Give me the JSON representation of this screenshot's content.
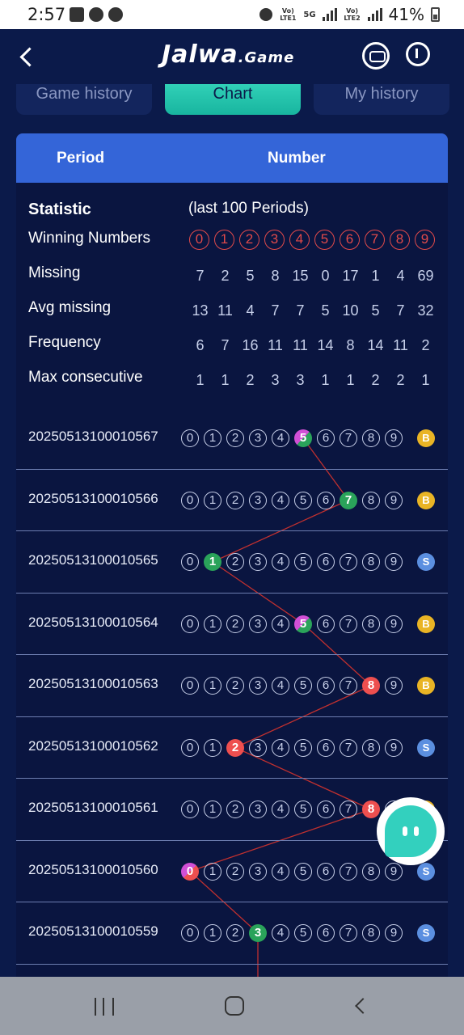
{
  "status_bar": {
    "time": "2:57",
    "battery": "41%",
    "net1": "Vo) LTE1",
    "net2": "Vo) LTE2",
    "net5g": "5G"
  },
  "header": {
    "logo": "Jalwa",
    "logo_suffix": ".Game"
  },
  "tabs": [
    {
      "label": "Game history",
      "active": false
    },
    {
      "label": "Chart",
      "active": true
    },
    {
      "label": "My history",
      "active": false
    }
  ],
  "table_header": {
    "period": "Period",
    "number": "Number"
  },
  "statistic": {
    "title": "Statistic",
    "note": "(last 100 Periods)",
    "rows": [
      {
        "label": "Winning Numbers",
        "values": [
          "0",
          "1",
          "2",
          "3",
          "4",
          "5",
          "6",
          "7",
          "8",
          "9"
        ]
      },
      {
        "label": "Missing",
        "values": [
          "7",
          "2",
          "5",
          "8",
          "15",
          "0",
          "17",
          "1",
          "4",
          "69"
        ]
      },
      {
        "label": "Avg missing",
        "values": [
          "13",
          "11",
          "4",
          "7",
          "7",
          "5",
          "10",
          "5",
          "7",
          "32"
        ]
      },
      {
        "label": "Frequency",
        "values": [
          "6",
          "7",
          "16",
          "11",
          "11",
          "14",
          "8",
          "14",
          "11",
          "2"
        ]
      },
      {
        "label": "Max consecutive",
        "values": [
          "1",
          "1",
          "2",
          "3",
          "3",
          "1",
          "1",
          "2",
          "2",
          "1"
        ]
      }
    ]
  },
  "records": [
    {
      "period": "20250513100010567",
      "number": 5,
      "size": "B"
    },
    {
      "period": "20250513100010566",
      "number": 7,
      "size": "B"
    },
    {
      "period": "20250513100010565",
      "number": 1,
      "size": "S"
    },
    {
      "period": "20250513100010564",
      "number": 5,
      "size": "B"
    },
    {
      "period": "20250513100010563",
      "number": 8,
      "size": "B"
    },
    {
      "period": "20250513100010562",
      "number": 2,
      "size": "S"
    },
    {
      "period": "20250513100010561",
      "number": 8,
      "size": "B"
    },
    {
      "period": "20250513100010560",
      "number": 0,
      "size": "S"
    },
    {
      "period": "20250513100010559",
      "number": 3,
      "size": "S"
    }
  ],
  "digits": [
    "0",
    "1",
    "2",
    "3",
    "4",
    "5",
    "6",
    "7",
    "8",
    "9"
  ],
  "colors": {
    "accent": "#3465d8",
    "tab_active": "#3fe0c5",
    "trend_line": "#c0302f",
    "big": "#e9b425",
    "small": "#5b8fe0"
  }
}
